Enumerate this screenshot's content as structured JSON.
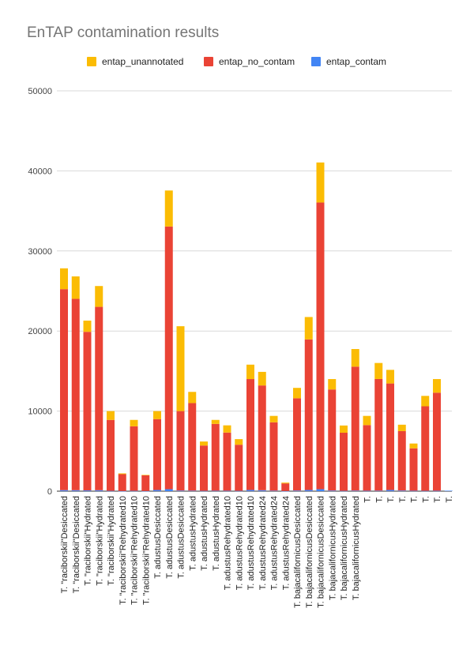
{
  "chart_data": {
    "type": "bar",
    "stacked": true,
    "title": "EnTAP contamination results",
    "xlabel": "",
    "ylabel": "",
    "ylim": [
      0,
      50000
    ],
    "yticks": [
      0,
      10000,
      20000,
      30000,
      40000,
      50000
    ],
    "grid": true,
    "legend_position": "top",
    "categories": [
      "T. \"raciborskii\"Desiccated",
      "T. \"raciborskii\"Desiccated",
      "T. \"raciborskii\"Hydrated",
      "T. \"raciborskii\"Hydrated",
      "T. \"raciborskii\"Hydrated",
      "T. \"raciborskii\"Rehydrated10",
      "T. \"raciborskii\"Rehydrated10",
      "T. \"raciborskii\"Rehydrated10",
      "T. adustusDesiccated",
      "T. adustusDesiccated",
      "T. adustusDesiccated",
      "T. adustusHydrated",
      "T. adustusHydrated",
      "T. adustusHydrated",
      "T. adustusRehydrated10",
      "T. adustusRehydrated10",
      "T. adustusRehydrated10",
      "T. adustusRehydrated24",
      "T. adustusRehydrated24",
      "T. adustusRehydrated24",
      "T. bajacalifornicusDesiccated",
      "T. bajacalifornicusDesiccated",
      "T. bajacalifornicusDesiccated",
      "T. bajacalifornicusHydrated",
      "T. bajacalifornicusHydrated",
      "T. bajacalifornicusHydrated",
      "T.",
      "T.",
      "T.",
      "T.",
      "T.",
      "T.",
      "T.",
      "T."
    ],
    "series": [
      {
        "name": "entap_contam",
        "color": "#4285f4",
        "values": [
          130,
          120,
          100,
          120,
          40,
          20,
          40,
          20,
          150,
          250,
          80,
          60,
          40,
          50,
          50,
          40,
          150,
          120,
          60,
          20,
          80,
          150,
          250,
          80,
          40,
          70,
          50,
          60,
          150,
          80,
          50,
          40,
          50,
          60
        ]
      },
      {
        "name": "entap_no_contam",
        "color": "#ea4335",
        "values": [
          25100,
          23900,
          19800,
          22900,
          8860,
          2100,
          8060,
          1960,
          8850,
          32800,
          9920,
          10940,
          5660,
          8350,
          7270,
          5760,
          13850,
          13080,
          8540,
          950,
          11520,
          18800,
          35800,
          12620,
          7260,
          15480,
          8200,
          13950,
          13300,
          7420,
          5300,
          10560,
          12250,
          0
        ]
      },
      {
        "name": "entap_unannotated",
        "color": "#fbbc04",
        "values": [
          2600,
          2800,
          1400,
          2600,
          1100,
          100,
          800,
          50,
          1000,
          4500,
          10600,
          1400,
          500,
          500,
          900,
          700,
          1800,
          1700,
          800,
          100,
          1300,
          2800,
          5000,
          1300,
          900,
          2200,
          1150,
          2000,
          1700,
          800,
          600,
          1300,
          1700,
          0
        ]
      }
    ]
  }
}
